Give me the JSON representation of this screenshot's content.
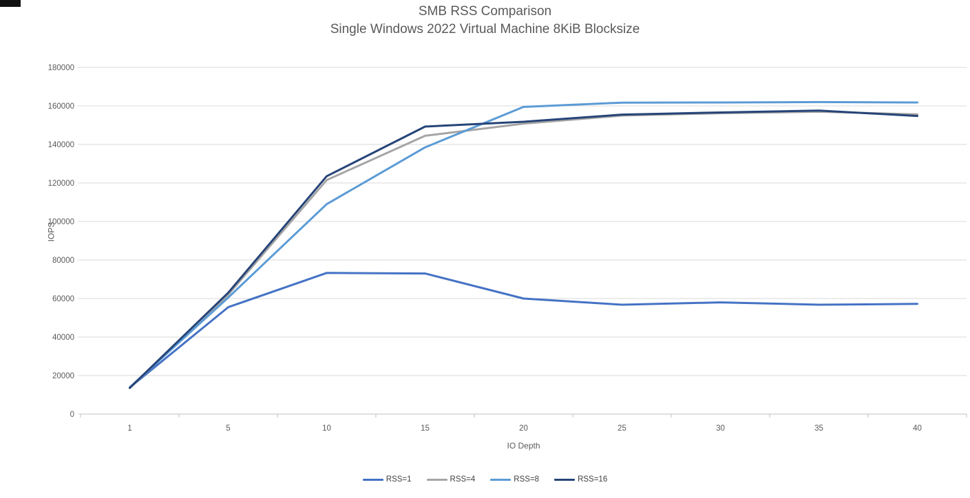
{
  "chart_data": {
    "type": "line",
    "title": "SMB RSS Comparison",
    "subtitle": "Single Windows 2022 Virtual Machine 8KiB Blocksize",
    "xlabel": "IO Depth",
    "ylabel": "IOPS",
    "categories": [
      1,
      5,
      10,
      15,
      20,
      25,
      30,
      35,
      40
    ],
    "y_ticks": [
      0,
      20000,
      40000,
      60000,
      80000,
      100000,
      120000,
      140000,
      160000,
      180000
    ],
    "ylim": [
      0,
      180000
    ],
    "grid": true,
    "legend_position": "bottom",
    "grid_color": "#D9D9D9",
    "axis_color": "#BFBFBF",
    "tick_label_color": "#595959",
    "series": [
      {
        "name": "RSS=1",
        "color": "#4472C4",
        "values": [
          13800,
          55500,
          73300,
          73000,
          60000,
          56800,
          58000,
          56800,
          57200
        ]
      },
      {
        "name": "RSS=4",
        "color": "#A5A5A5",
        "values": [
          13500,
          62000,
          121500,
          144500,
          150800,
          155000,
          156200,
          157000,
          155600
        ]
      },
      {
        "name": "RSS=8",
        "color": "#5B9BD5",
        "values": [
          13900,
          60500,
          109000,
          138500,
          159500,
          161700,
          161800,
          162000,
          161800
        ]
      },
      {
        "name": "RSS=16",
        "color": "#264478",
        "values": [
          13600,
          63000,
          123500,
          149300,
          151800,
          155500,
          156600,
          157600,
          154800
        ]
      }
    ]
  }
}
